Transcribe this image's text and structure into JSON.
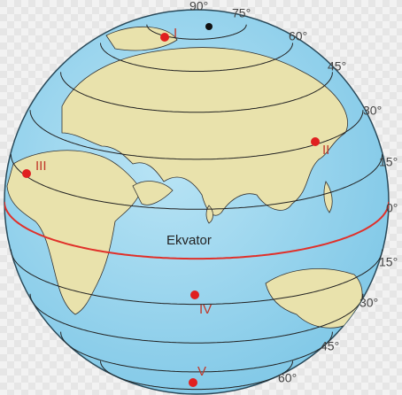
{
  "latitude_labels": [
    "90°",
    "75°",
    "60°",
    "45°",
    "30°",
    "15°",
    "0°",
    "15°",
    "30°",
    "45°",
    "60°"
  ],
  "points": [
    "I",
    "II",
    "III",
    "IV",
    "V"
  ],
  "equator_label": "Ekvator"
}
